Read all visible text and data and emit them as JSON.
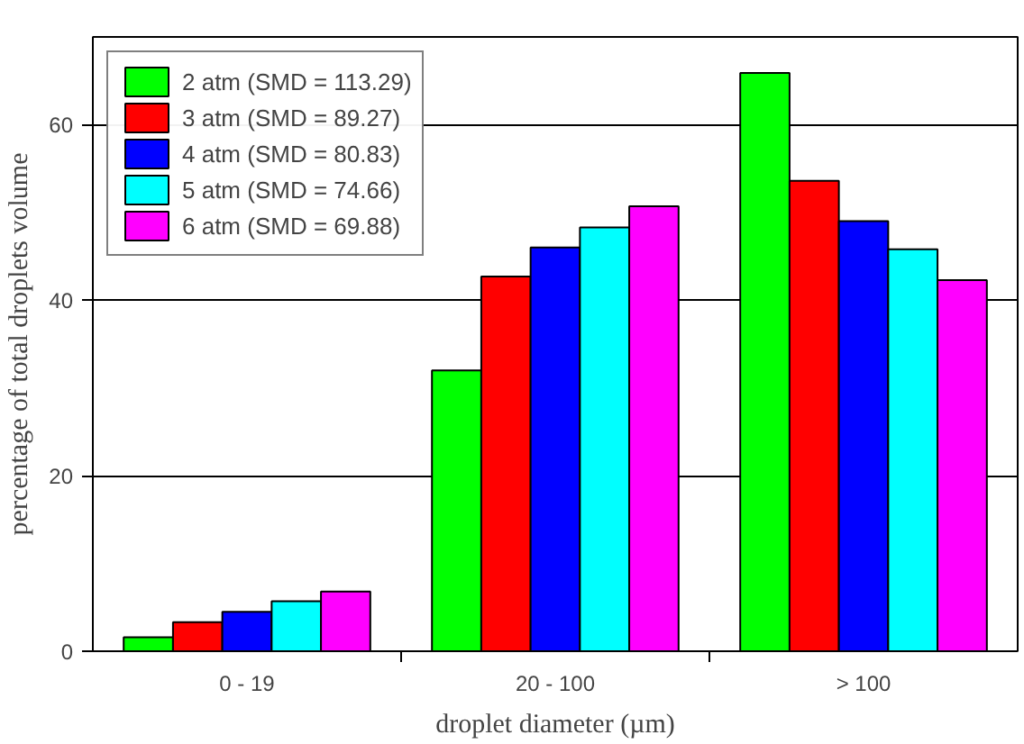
{
  "chart_data": {
    "type": "bar",
    "xlabel": "droplet diameter (µm)",
    "ylabel": "percentage of total droplets volume",
    "categories": [
      "0 - 19",
      "20 - 100",
      "> 100"
    ],
    "series": [
      {
        "name": "2 atm (SMD = 113.29)",
        "color": "#00ff00",
        "values": [
          1.6,
          32,
          65.9
        ]
      },
      {
        "name": "3 atm (SMD = 89.27)",
        "color": "#ff0000",
        "values": [
          3.3,
          42.7,
          53.6
        ]
      },
      {
        "name": "4 atm (SMD = 80.83)",
        "color": "#0000ff",
        "values": [
          4.5,
          46,
          49
        ]
      },
      {
        "name": "5 atm (SMD = 74.66)",
        "color": "#00ffff",
        "values": [
          5.7,
          48.3,
          45.8
        ]
      },
      {
        "name": "6 atm (SMD = 69.88)",
        "color": "#ff00ff",
        "values": [
          6.8,
          50.7,
          42.3
        ]
      }
    ],
    "ylim": [
      0,
      70
    ],
    "yticks": [
      0,
      20,
      40,
      60
    ],
    "grid": "y",
    "legend": "top left"
  }
}
